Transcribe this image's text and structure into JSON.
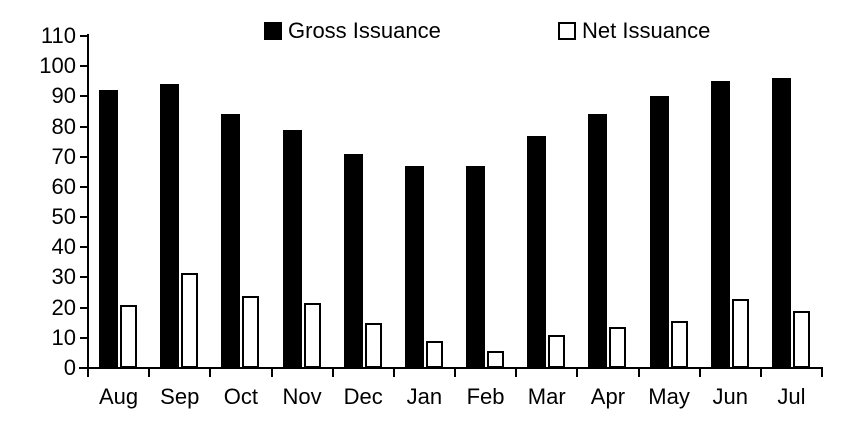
{
  "chart_data": {
    "type": "bar",
    "title": "",
    "xlabel": "",
    "ylabel": "",
    "categories": [
      "Aug",
      "Sep",
      "Oct",
      "Nov",
      "Dec",
      "Jan",
      "Feb",
      "Mar",
      "Apr",
      "May",
      "Jun",
      "Jul"
    ],
    "series": [
      {
        "name": "Gross Issuance",
        "values": [
          92,
          94,
          84,
          79,
          71,
          67,
          67,
          77,
          84,
          90,
          95,
          96
        ],
        "fill": "#000000",
        "border": "#000000"
      },
      {
        "name": "Net Issuance",
        "values": [
          21,
          31.5,
          24,
          21.5,
          15,
          9,
          5.5,
          11,
          13.5,
          15.5,
          23,
          19
        ],
        "fill": "#ffffff",
        "border": "#000000"
      }
    ],
    "ylim": [
      0,
      110
    ],
    "ytick_step": 10,
    "ytick_labels": [
      "0",
      "10",
      "20",
      "30",
      "40",
      "50",
      "60",
      "70",
      "80",
      "90",
      "100",
      "110"
    ],
    "grid": false,
    "legend_position": "top",
    "axis_color": "#000000",
    "background_color": "#ffffff",
    "text_color": "#000000"
  }
}
